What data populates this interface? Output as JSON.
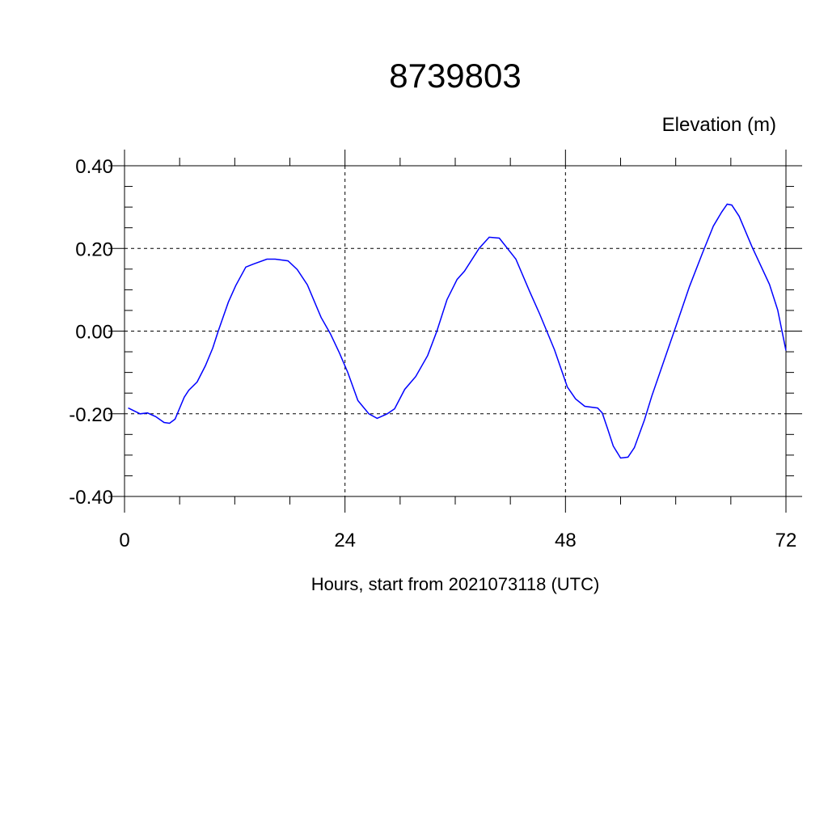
{
  "chart_data": {
    "type": "line",
    "title": "8739803",
    "ylabel": "Elevation (m)",
    "xlabel": "Hours, start from 2021073118 (UTC)",
    "xlim": [
      0,
      72
    ],
    "ylim": [
      -0.4,
      0.4
    ],
    "xticks": [
      0,
      24,
      48,
      72
    ],
    "xtick_labels": [
      "0",
      "24",
      "48",
      "72"
    ],
    "yticks": [
      0.4,
      0.2,
      0.0,
      -0.2,
      -0.4
    ],
    "ytick_labels": [
      "0.40",
      "0.20",
      "0.00",
      "-0.20",
      "-0.40"
    ],
    "grid": true,
    "line_color": "#0000ff",
    "series": [
      {
        "x": [
          0.4,
          1.7,
          2.5,
          3.4,
          4.3,
          4.9,
          5.5,
          6.5,
          7.0,
          7.9,
          8.8,
          9.6,
          10.2,
          11.3,
          12.1,
          13.2,
          14.0,
          15.5,
          16.4,
          17.8,
          18.8,
          19.9,
          21.4,
          22.4,
          23.4,
          24.3,
          25.4,
          26.6,
          27.5,
          28.6,
          29.4,
          30.5,
          31.7,
          33.0,
          34.0,
          35.1,
          36.2,
          37.0,
          38.6,
          39.7,
          40.8,
          42.6,
          44.1,
          45.2,
          46.8,
          48.2,
          49.1,
          50.1,
          51.5,
          52.0,
          52.6,
          53.2,
          54.0,
          54.8,
          55.5,
          56.6,
          57.4,
          58.8,
          60.2,
          61.5,
          62.9,
          64.1,
          65.0,
          65.6,
          66.1,
          66.9,
          68.3,
          70.2,
          71.1,
          72.0
        ],
        "y": [
          -0.186,
          -0.2,
          -0.198,
          -0.207,
          -0.221,
          -0.223,
          -0.213,
          -0.16,
          -0.143,
          -0.123,
          -0.084,
          -0.041,
          0.0,
          0.07,
          0.11,
          0.155,
          0.162,
          0.174,
          0.174,
          0.17,
          0.149,
          0.112,
          0.033,
          -0.006,
          -0.053,
          -0.1,
          -0.168,
          -0.2,
          -0.211,
          -0.2,
          -0.188,
          -0.141,
          -0.11,
          -0.059,
          0.0,
          0.076,
          0.125,
          0.145,
          0.2,
          0.227,
          0.225,
          0.174,
          0.096,
          0.041,
          -0.045,
          -0.135,
          -0.164,
          -0.182,
          -0.186,
          -0.198,
          -0.237,
          -0.278,
          -0.307,
          -0.305,
          -0.282,
          -0.215,
          -0.157,
          -0.067,
          0.023,
          0.108,
          0.188,
          0.254,
          0.288,
          0.307,
          0.305,
          0.278,
          0.204,
          0.113,
          0.051,
          -0.047
        ]
      }
    ]
  }
}
